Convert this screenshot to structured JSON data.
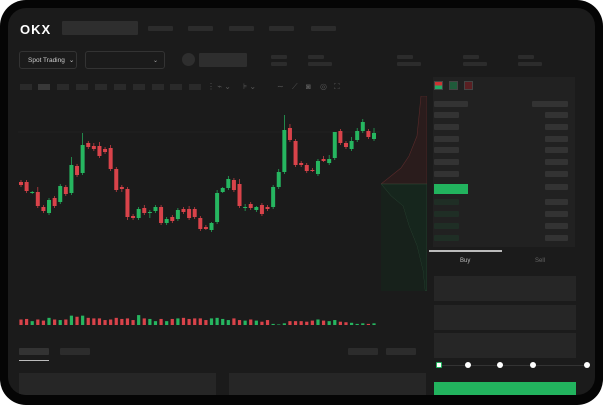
{
  "header": {
    "logo": "OKX"
  },
  "toolbar": {
    "market_select": "Spot Trading"
  },
  "order_form": {
    "tabs": [
      {
        "label": "Buy",
        "active": true
      },
      {
        "label": "Sell",
        "active": false
      }
    ],
    "slider_level": 0,
    "slider_stops": 5,
    "submit_color": "#22b35e"
  },
  "colors": {
    "up": "#26b660",
    "down": "#d9434a",
    "background": "#1b1b1b"
  },
  "chart_data": {
    "type": "candlestick",
    "candles": [
      [
        118,
        120,
        113,
        115
      ],
      [
        118,
        120,
        107,
        109
      ],
      [
        107,
        109,
        106,
        108
      ],
      [
        108,
        113,
        92,
        94
      ],
      [
        93,
        95,
        87,
        89
      ],
      [
        87,
        102,
        85,
        100
      ],
      [
        102,
        104,
        92,
        94
      ],
      [
        98,
        116,
        96,
        114
      ],
      [
        113,
        115,
        104,
        106
      ],
      [
        107,
        143,
        105,
        135
      ],
      [
        134,
        136,
        123,
        125
      ],
      [
        127,
        167,
        125,
        155
      ],
      [
        157,
        159,
        151,
        153
      ],
      [
        154,
        157,
        149,
        151
      ],
      [
        154,
        158,
        142,
        144
      ],
      [
        151,
        153,
        146,
        148
      ],
      [
        152,
        155,
        129,
        131
      ],
      [
        131,
        133,
        108,
        110
      ],
      [
        113,
        115,
        108,
        111
      ],
      [
        111,
        113,
        80,
        83
      ],
      [
        84,
        86,
        80,
        82
      ],
      [
        82,
        93,
        80,
        91
      ],
      [
        92,
        95,
        85,
        87
      ],
      [
        87,
        90,
        82,
        88
      ],
      [
        89,
        95,
        87,
        93
      ],
      [
        93,
        95,
        75,
        77
      ],
      [
        77,
        83,
        75,
        81
      ],
      [
        83,
        85,
        77,
        79
      ],
      [
        81,
        92,
        79,
        90
      ],
      [
        91,
        93,
        86,
        88
      ],
      [
        91,
        94,
        80,
        82
      ],
      [
        91,
        93,
        81,
        83
      ],
      [
        82,
        84,
        69,
        71
      ],
      [
        73,
        75,
        70,
        71
      ],
      [
        70,
        78,
        68,
        77
      ],
      [
        78,
        110,
        76,
        107
      ],
      [
        108,
        113,
        107,
        112
      ],
      [
        112,
        124,
        110,
        121
      ],
      [
        120,
        122,
        108,
        110
      ],
      [
        116,
        121,
        92,
        94
      ],
      [
        92,
        96,
        89,
        93
      ],
      [
        96,
        98,
        90,
        92
      ],
      [
        90,
        94,
        88,
        93
      ],
      [
        95,
        97,
        84,
        86
      ],
      [
        93,
        95,
        89,
        91
      ],
      [
        93,
        115,
        91,
        113
      ],
      [
        113,
        131,
        111,
        128
      ],
      [
        128,
        185,
        126,
        170
      ],
      [
        172,
        176,
        158,
        160
      ],
      [
        159,
        161,
        133,
        135
      ],
      [
        137,
        139,
        133,
        135
      ],
      [
        135,
        137,
        127,
        129
      ],
      [
        130,
        132,
        128,
        129
      ],
      [
        126,
        141,
        124,
        139
      ],
      [
        141,
        144,
        138,
        139
      ],
      [
        137,
        145,
        135,
        141
      ],
      [
        142,
        168,
        140,
        168
      ],
      [
        169,
        171,
        155,
        157
      ],
      [
        157,
        159,
        151,
        153
      ],
      [
        151,
        163,
        149,
        159
      ],
      [
        160,
        172,
        158,
        169
      ],
      [
        169,
        181,
        167,
        178
      ],
      [
        169,
        171,
        161,
        163
      ],
      [
        161,
        172,
        159,
        167
      ]
    ],
    "volume": [
      10,
      11,
      7,
      10,
      8,
      13,
      10,
      9,
      10,
      17,
      15,
      17,
      13,
      12,
      12,
      9,
      10,
      13,
      11,
      12,
      9,
      18,
      12,
      11,
      7,
      11,
      7,
      11,
      12,
      13,
      11,
      12,
      12,
      9,
      12,
      13,
      11,
      9,
      12,
      9,
      8,
      10,
      8,
      6,
      9,
      2,
      1,
      3,
      7,
      7,
      7,
      6,
      8,
      10,
      8,
      7,
      9,
      6,
      5,
      4,
      2,
      3,
      2,
      3
    ]
  }
}
